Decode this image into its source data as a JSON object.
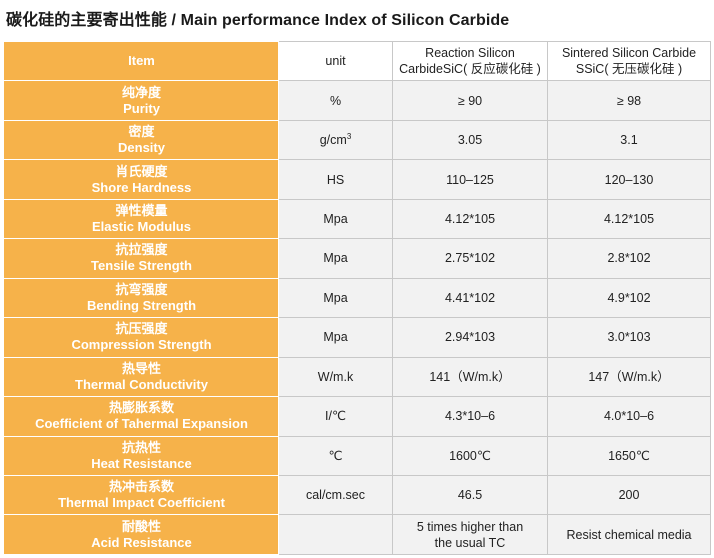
{
  "title": "碳化硅的主要寄出性能 / Main performance Index of Silicon Carbide",
  "header": {
    "item": "Item",
    "unit": "unit",
    "col_reaction_line1": "Reaction Silicon",
    "col_reaction_line2": "CarbideSiC( 反应碳化硅 )",
    "col_sintered_line1": "Sintered Silicon Carbide",
    "col_sintered_line2": "SSiC( 无压碳化硅 )"
  },
  "rows": [
    {
      "zh": "纯净度",
      "en": "Purity",
      "unit": "%",
      "reaction": "≥ 90",
      "sintered": "≥ 98"
    },
    {
      "zh": "密度",
      "en": "Density",
      "unit": "g/cm",
      "unit_sup": "3",
      "reaction": "3.05",
      "sintered": "3.1"
    },
    {
      "zh": "肖氏硬度",
      "en": "Shore Hardness",
      "unit": "HS",
      "reaction": "110–125",
      "sintered": "120–130"
    },
    {
      "zh": "弹性模量",
      "en": "Elastic Modulus",
      "unit": "Mpa",
      "reaction": "4.12*105",
      "sintered": "4.12*105"
    },
    {
      "zh": "抗拉强度",
      "en": "Tensile Strength",
      "unit": "Mpa",
      "reaction": "2.75*102",
      "sintered": "2.8*102"
    },
    {
      "zh": "抗弯强度",
      "en": "Bending Strength",
      "unit": "Mpa",
      "reaction": "4.41*102",
      "sintered": "4.9*102"
    },
    {
      "zh": "抗压强度",
      "en": "Compression Strength",
      "unit": "Mpa",
      "reaction": "2.94*103",
      "sintered": "3.0*103"
    },
    {
      "zh": "热导性",
      "en": "Thermal Conductivity",
      "unit": "W/m.k",
      "reaction": "141（W/m.k）",
      "sintered": "147（W/m.k）"
    },
    {
      "zh": "热膨胀系数",
      "en": "Coefficient of Tahermal Expansion",
      "unit": "I/℃",
      "reaction": "4.3*10–6",
      "sintered": "4.0*10–6"
    },
    {
      "zh": "抗热性",
      "en": "Heat Resistance",
      "unit": "℃",
      "reaction": "1600℃",
      "sintered": "1650℃"
    },
    {
      "zh": "热冲击系数",
      "en": "Thermal Impact Coefficient",
      "unit": "cal/cm.sec",
      "reaction": "46.5",
      "sintered": "200"
    },
    {
      "zh": "耐酸性",
      "en": "Acid Resistance",
      "unit": "",
      "reaction_line1": "5 times higher than",
      "reaction_line2": "the usual TC",
      "sintered": "Resist chemical media"
    }
  ],
  "colors": {
    "item_bg": "#f6b24a",
    "cell_bg": "#f2f2f2",
    "border": "#c8c8c8"
  }
}
